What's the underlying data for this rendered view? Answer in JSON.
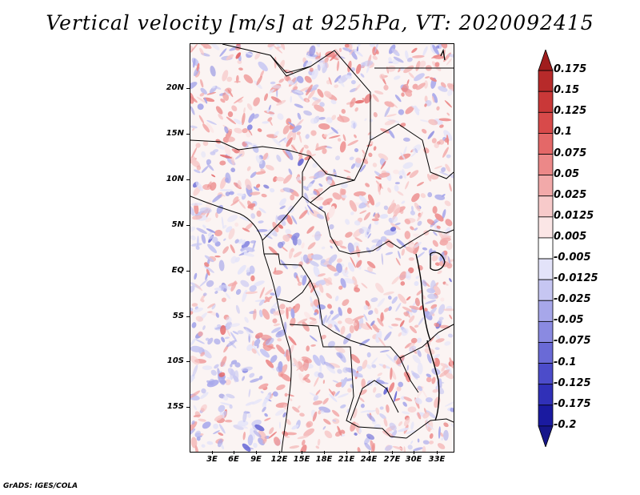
{
  "title": "Vertical velocity [m/s] at 925hPa, VT: 2020092415",
  "map": {
    "lat_labels": [
      "20N",
      "15N",
      "10N",
      "5N",
      "EQ",
      "5S",
      "10S",
      "15S"
    ],
    "lon_labels": [
      "3E",
      "6E",
      "9E",
      "12E",
      "15E",
      "18E",
      "21E",
      "24E",
      "27E",
      "30E",
      "33E"
    ]
  },
  "colorbar": {
    "levels": [
      "0.175",
      "0.15",
      "0.125",
      "0.1",
      "0.075",
      "0.05",
      "0.025",
      "0.0125",
      "0.005",
      "-0.005",
      "-0.0125",
      "-0.025",
      "-0.05",
      "-0.075",
      "-0.1",
      "-0.125",
      "-0.175",
      "-0.2"
    ],
    "colors": [
      "#a01d1d",
      "#b72a2a",
      "#c93838",
      "#d84a4a",
      "#e46868",
      "#ec8888",
      "#f2a9a9",
      "#f7caca",
      "#fbe6e6",
      "#ffffff",
      "#e3e3f9",
      "#c6c6f2",
      "#a7a7ea",
      "#8a8ae1",
      "#6a6ad6",
      "#4c4cca",
      "#3030b8",
      "#1a1aa0",
      "#16168a"
    ]
  },
  "footer": "GrADS: IGES/COLA"
}
